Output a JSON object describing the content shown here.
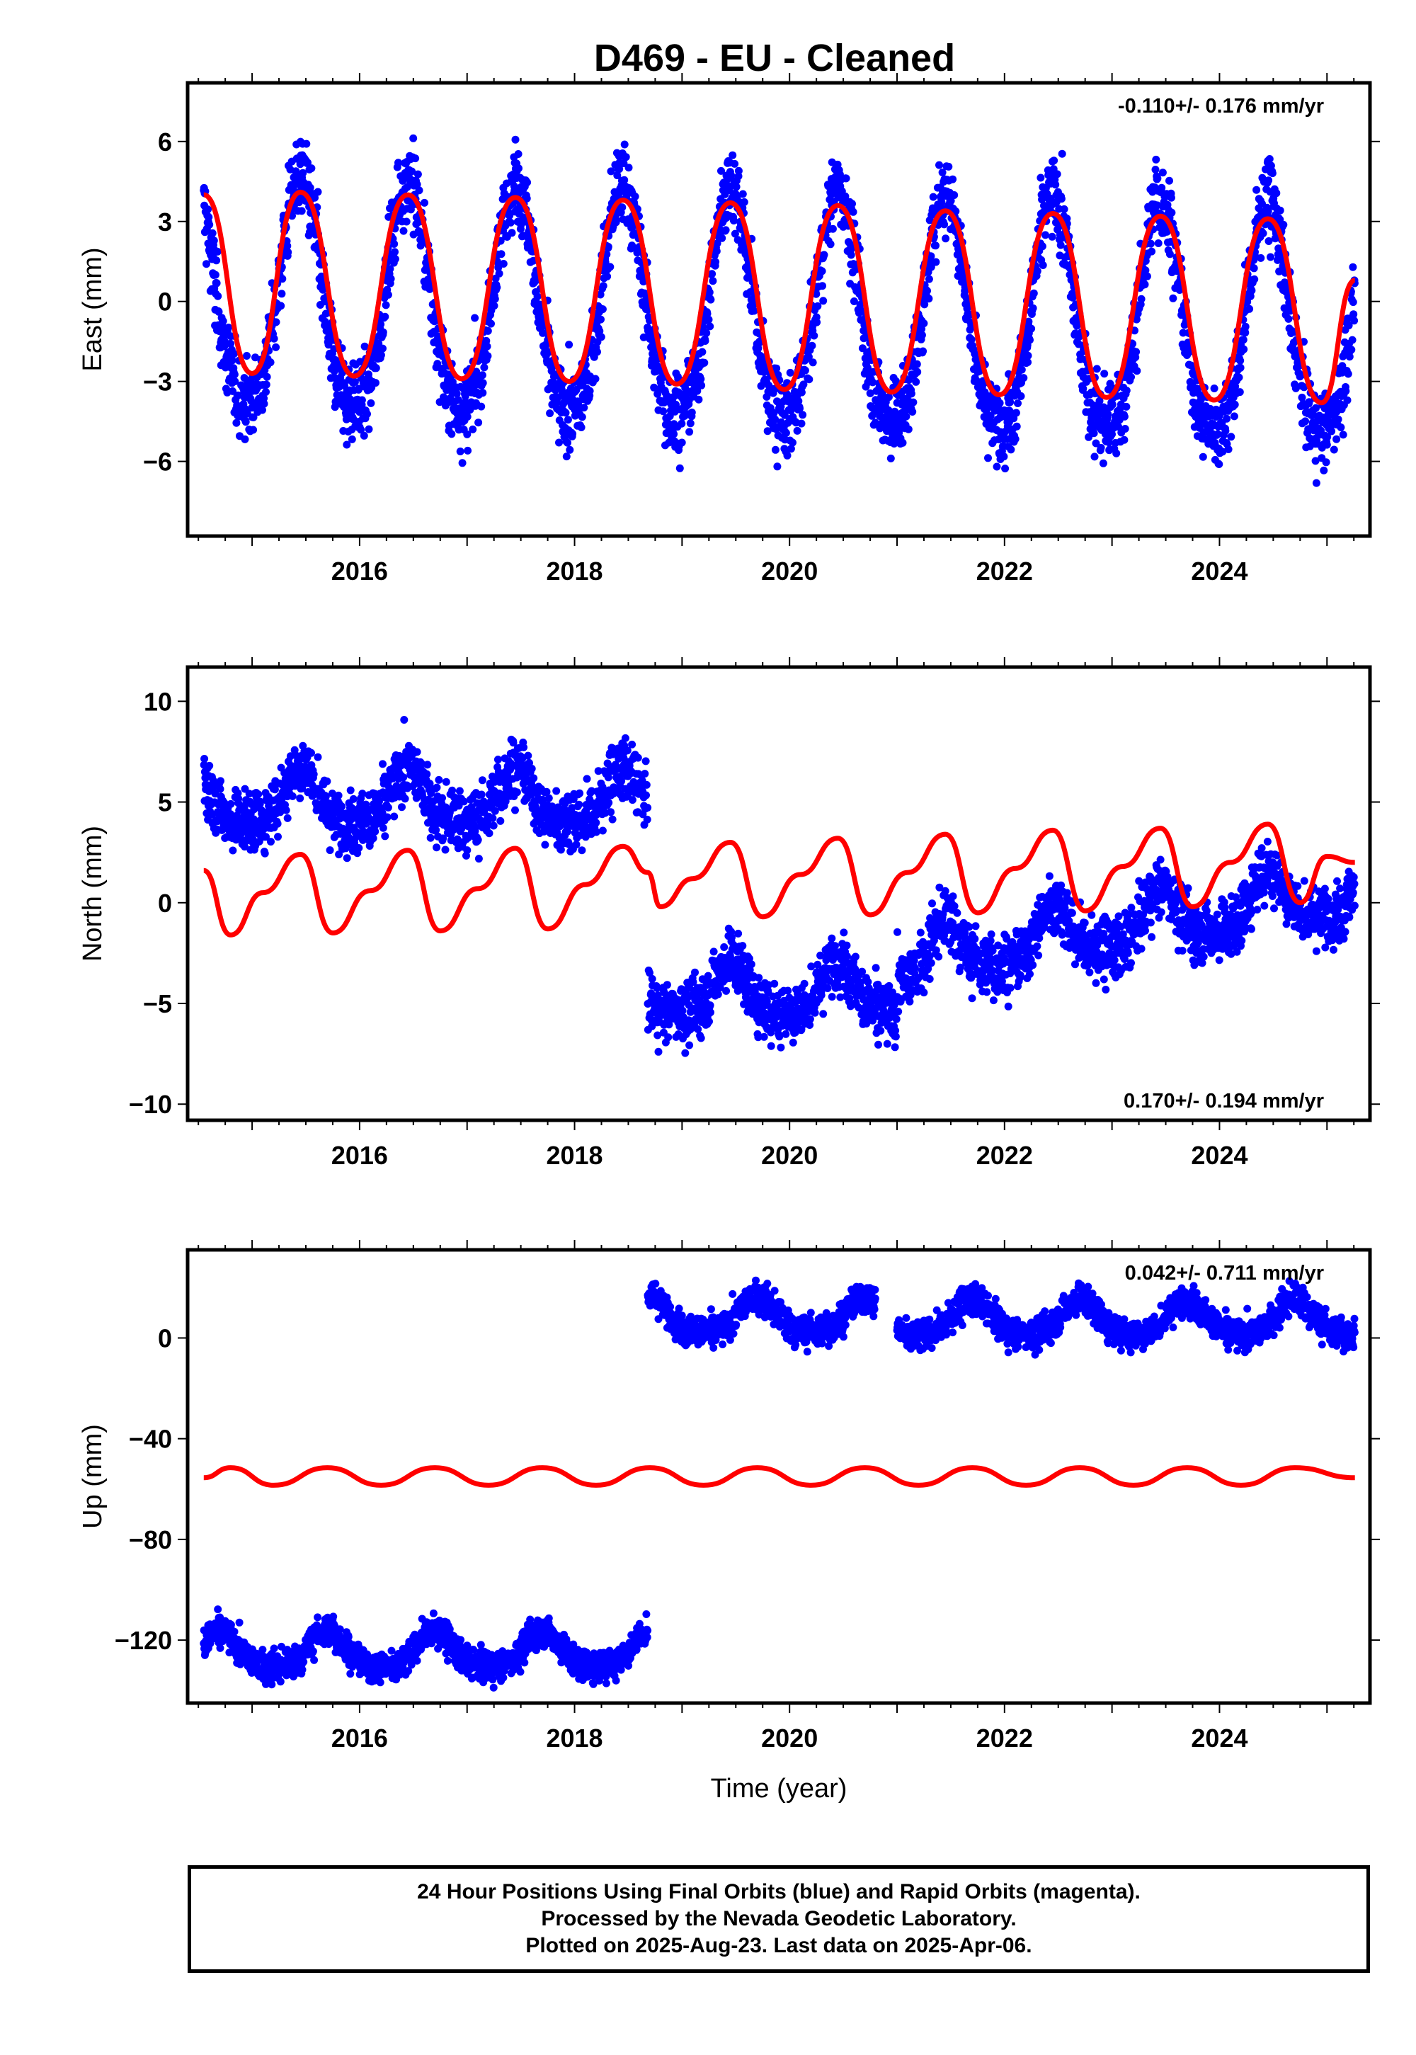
{
  "chart_data": [
    {
      "type": "scatter",
      "title": "D469  - EU - Cleaned",
      "ylabel": "East (mm)",
      "xlim": [
        2014.4,
        2025.4
      ],
      "ylim": [
        -8.8,
        8.2
      ],
      "xticks": [
        2016,
        2018,
        2020,
        2022,
        2024
      ],
      "yticks": [
        -6,
        -3,
        0,
        3,
        6
      ],
      "rate_text": "-0.110+/- 0.176 mm/yr",
      "rate_position": "top-right",
      "series": [
        {
          "kind": "points",
          "color": "#0000ff",
          "start": 2014.55,
          "end": 2025.26,
          "segments": [
            {
              "from": 2014.55,
              "to": 2025.26,
              "offset": 0,
              "trend": -0.11
            }
          ],
          "annual_amp": 4.3,
          "annual_phase_peak": 2015.45,
          "semi_amp": 0.6,
          "noise": 1.1
        },
        {
          "kind": "model",
          "color": "#ff0000",
          "x": [
            2014.55,
            2015.0,
            2015.45,
            2015.95,
            2016.45,
            2016.95,
            2017.45,
            2017.95,
            2018.45,
            2018.95,
            2019.45,
            2019.95,
            2020.45,
            2020.95,
            2021.45,
            2021.95,
            2022.45,
            2022.95,
            2023.45,
            2023.95,
            2024.45,
            2024.95,
            2025.26
          ],
          "y": [
            4.0,
            -2.7,
            4.1,
            -2.8,
            4.0,
            -2.9,
            3.9,
            -3.0,
            3.8,
            -3.1,
            3.7,
            -3.3,
            3.6,
            -3.4,
            3.4,
            -3.5,
            3.3,
            -3.6,
            3.2,
            -3.7,
            3.1,
            -3.8,
            0.8
          ]
        }
      ]
    },
    {
      "type": "scatter",
      "ylabel": "North (mm)",
      "xlim": [
        2014.4,
        2025.4
      ],
      "ylim": [
        -10.8,
        11.7
      ],
      "xticks": [
        2016,
        2018,
        2020,
        2022,
        2024
      ],
      "yticks": [
        -10,
        -5,
        0,
        5,
        10
      ],
      "rate_text": "0.170+/- 0.194 mm/yr",
      "rate_position": "bottom-right",
      "series": [
        {
          "kind": "points",
          "color": "#0000ff",
          "start": 2014.55,
          "end": 2025.26,
          "segments": [
            {
              "from": 2014.55,
              "to": 2018.68,
              "offset": 5.0,
              "trend": 0.0
            },
            {
              "from": 2018.68,
              "to": 2021.0,
              "offset": -4.5,
              "trend": 0.0
            },
            {
              "from": 2021.0,
              "to": 2025.26,
              "offset": -3.0,
              "trend": 0.85
            }
          ],
          "annual_amp": 1.3,
          "annual_phase_peak": 2015.45,
          "semi_amp": 0.4,
          "noise": 1.1
        },
        {
          "kind": "model",
          "color": "#ff0000",
          "x": [
            2014.55,
            2014.8,
            2015.1,
            2015.45,
            2015.75,
            2016.1,
            2016.45,
            2016.75,
            2017.1,
            2017.45,
            2017.75,
            2018.1,
            2018.45,
            2018.68,
            2018.8,
            2019.1,
            2019.45,
            2019.75,
            2020.1,
            2020.45,
            2020.75,
            2021.1,
            2021.45,
            2021.75,
            2022.1,
            2022.45,
            2022.75,
            2023.1,
            2023.45,
            2023.75,
            2024.1,
            2024.45,
            2024.75,
            2025.0,
            2025.26
          ],
          "y": [
            1.6,
            -1.6,
            0.5,
            2.4,
            -1.5,
            0.6,
            2.6,
            -1.4,
            0.7,
            2.7,
            -1.3,
            0.9,
            2.8,
            1.5,
            -0.2,
            1.2,
            3.0,
            -0.7,
            1.4,
            3.2,
            -0.6,
            1.5,
            3.4,
            -0.5,
            1.7,
            3.6,
            -0.4,
            1.8,
            3.7,
            -0.2,
            2.0,
            3.9,
            0.0,
            2.3,
            2.0
          ]
        }
      ]
    },
    {
      "type": "scatter",
      "ylabel": "Up (mm)",
      "xlabel": "Time (year)",
      "xlim": [
        2014.4,
        2025.4
      ],
      "ylim": [
        -145,
        35
      ],
      "xticks": [
        2016,
        2018,
        2020,
        2022,
        2024
      ],
      "yticks": [
        -120,
        -80,
        -40,
        0
      ],
      "rate_text": "0.042+/- 0.711 mm/yr",
      "rate_position": "top-right",
      "series": [
        {
          "kind": "points",
          "color": "#0000ff",
          "start": 2014.55,
          "end": 2025.26,
          "segments": [
            {
              "from": 2014.55,
              "to": 2018.68,
              "offset": -125,
              "trend": 0.0
            },
            {
              "from": 2018.68,
              "to": 2020.8,
              "offset": 8,
              "trend": 0.0
            },
            {
              "from": 2021.0,
              "to": 2025.26,
              "offset": 7,
              "trend": 0.0
            }
          ],
          "annual_amp": 7,
          "annual_phase_peak": 2015.7,
          "semi_amp": 1.5,
          "noise": 4.5
        },
        {
          "kind": "model",
          "color": "#ff0000",
          "x": [
            2014.55,
            2014.8,
            2015.2,
            2015.7,
            2016.2,
            2016.7,
            2017.2,
            2017.7,
            2018.2,
            2018.7,
            2019.2,
            2019.7,
            2020.2,
            2020.7,
            2021.2,
            2021.7,
            2022.2,
            2022.7,
            2023.2,
            2023.7,
            2024.2,
            2024.7,
            2025.26
          ],
          "y": [
            -55.5,
            -51.5,
            -58.5,
            -51.5,
            -58.5,
            -51.5,
            -58.5,
            -51.5,
            -58.5,
            -51.5,
            -58.5,
            -51.5,
            -58.5,
            -51.5,
            -58.5,
            -51.5,
            -58.5,
            -51.5,
            -58.5,
            -51.5,
            -58.5,
            -51.5,
            -55.5
          ]
        }
      ]
    }
  ],
  "footer": {
    "line1": "24 Hour Positions Using Final Orbits (blue) and Rapid Orbits (magenta).",
    "line2": "Processed by the Nevada Geodetic Laboratory.",
    "line3": "Plotted on 2025-Aug-23. Last data on 2025-Apr-06."
  }
}
